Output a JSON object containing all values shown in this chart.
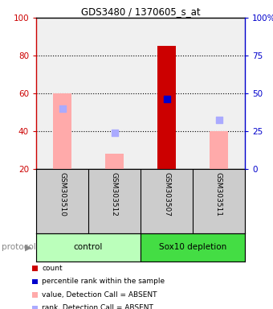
{
  "title": "GDS3480 / 1370605_s_at",
  "samples": [
    "GSM303510",
    "GSM303512",
    "GSM303507",
    "GSM303511"
  ],
  "bars": {
    "GSM303510": {
      "value_bar": 60,
      "value_bar_color": "#ffaaaa",
      "rank_val": 52,
      "rank_color": "#aaaaff",
      "is_present": false
    },
    "GSM303512": {
      "value_bar": 28,
      "value_bar_color": "#ffaaaa",
      "rank_val": 39,
      "rank_color": "#aaaaff",
      "is_present": false
    },
    "GSM303507": {
      "value_bar": 85,
      "value_bar_color": "#cc0000",
      "rank_val": 57,
      "rank_color": "#0000cc",
      "is_present": true
    },
    "GSM303511": {
      "value_bar": 40,
      "value_bar_color": "#ffaaaa",
      "rank_val": 46,
      "rank_color": "#aaaaff",
      "is_present": false
    }
  },
  "groups": [
    {
      "name": "control",
      "start": 0,
      "end": 1,
      "color": "#bbffbb"
    },
    {
      "name": "Sox10 depletion",
      "start": 2,
      "end": 3,
      "color": "#44dd44"
    }
  ],
  "ylim_left": [
    20,
    100
  ],
  "yticks_left": [
    20,
    40,
    60,
    80,
    100
  ],
  "ylim_right": [
    0,
    100
  ],
  "yticks_right": [
    0,
    25,
    50,
    75,
    100
  ],
  "ytick_labels_right": [
    "0",
    "25",
    "50",
    "75",
    "100%"
  ],
  "left_axis_color": "#cc0000",
  "right_axis_color": "#0000cc",
  "bar_width": 0.35,
  "dot_size": 40,
  "bg_plot": "#f0f0f0",
  "bg_samples": "#cccccc",
  "legend_entries": [
    {
      "color": "#cc0000",
      "label": "count"
    },
    {
      "color": "#0000cc",
      "label": "percentile rank within the sample"
    },
    {
      "color": "#ffaaaa",
      "label": "value, Detection Call = ABSENT"
    },
    {
      "color": "#aaaaff",
      "label": "rank, Detection Call = ABSENT"
    }
  ]
}
